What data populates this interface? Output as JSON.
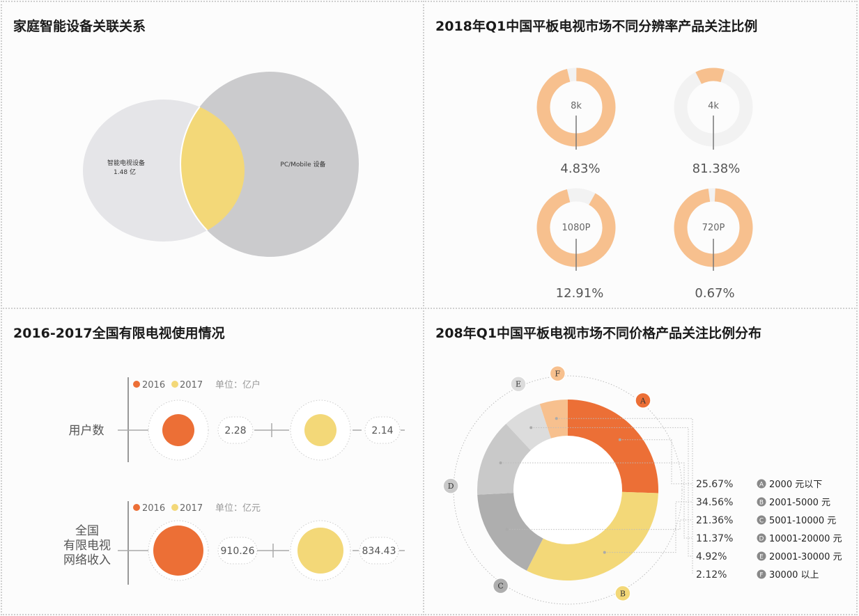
{
  "chart_data": [
    {
      "type": "venn",
      "title": "家庭智能设备关联关系",
      "sets": [
        {
          "name": "智能电视设备",
          "value_label": "1.48 亿",
          "color": "#e5e5e8"
        },
        {
          "name": "PC/Mobile 设备",
          "value_label": "",
          "color": "#cbcbcd"
        }
      ],
      "overlap_color": "#f3d878"
    },
    {
      "type": "donut",
      "title": "2018年Q1中国平板电视市场不同分辨率产品关注比例",
      "items": [
        {
          "label": "8k",
          "value_label": "4.83%",
          "value": 4.83
        },
        {
          "label": "4k",
          "value_label": "81.38%",
          "value": 81.38
        },
        {
          "label": "1080P",
          "value_label": "12.91%",
          "value": 12.91
        },
        {
          "label": "720P",
          "value_label": "0.67%",
          "value": 0.67
        }
      ],
      "colors": {
        "fill": "#f7c08e",
        "rest": "#f2f2f2"
      }
    },
    {
      "type": "bubble",
      "title": "2016-2017全国有限电视使用情况",
      "legend": [
        "2016",
        "2017"
      ],
      "colors": [
        "#ec6f36",
        "#f3d878"
      ],
      "groups": [
        {
          "name": "用户数",
          "name_lines": [
            "用户数"
          ],
          "unit_label": "单位：亿户",
          "values": [
            2.28,
            2.14
          ],
          "value_labels": [
            "2.28",
            "2.14"
          ]
        },
        {
          "name": "全国有限电视网络收入",
          "name_lines": [
            "全国",
            "有限电视",
            "网络收入"
          ],
          "unit_label": "单位：亿元",
          "values": [
            910.26,
            834.43
          ],
          "value_labels": [
            "910.26",
            "834.43"
          ]
        }
      ]
    },
    {
      "type": "pie",
      "title": "208年Q1中国平板电视市场不同价格产品关注比例分布",
      "slices": [
        {
          "letter": "A",
          "label": "2000 元以下",
          "pct_label": "25.67%",
          "color": "#ec6f36"
        },
        {
          "letter": "B",
          "label": "2001-5000 元",
          "pct_label": "34.56%",
          "color": "#f3d878"
        },
        {
          "letter": "C",
          "label": "5001-10000 元",
          "pct_label": "21.36%",
          "color": "#aeaeae"
        },
        {
          "letter": "D",
          "label": "10001-20000 元",
          "pct_label": "11.37%",
          "color": "#c9c9c9"
        },
        {
          "letter": "E",
          "label": "20001-30000 元",
          "pct_label": "4.92%",
          "color": "#dcdcdc"
        },
        {
          "letter": "F",
          "label": "30000 以上",
          "pct_label": "2.12%",
          "color": "#f7c08e"
        }
      ]
    }
  ]
}
